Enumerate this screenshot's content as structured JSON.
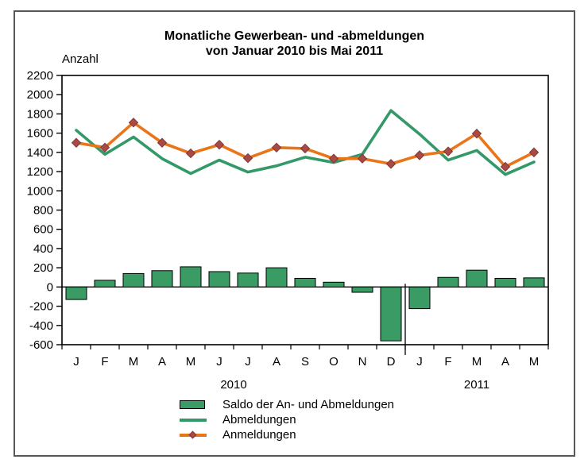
{
  "window": {
    "title_line1": "Monatliche Gewerbean- und -abmeldungen",
    "title_line2": "von Januar 2010 bis Mai 2011"
  },
  "y_axis_label": "Anzahl",
  "legend": [
    {
      "label": "Saldo der An- und Abmeldungen",
      "swatch": "bar"
    },
    {
      "label": "Abmeldungen",
      "swatch": "line"
    },
    {
      "label": "Anmeldungen",
      "swatch": "line-diamond"
    }
  ],
  "colors": {
    "bar_green": "#3A9B64",
    "line_green": "#339968",
    "orange": "#EA7418",
    "marker_fill": "#A94A45",
    "marker_stroke": "#823634",
    "axis_black": "#000000",
    "outer_border": "#58585A"
  },
  "chart_data": {
    "type": "composite",
    "title": "Monatliche Gewerbean- und -abmeldungen von Januar 2010 bis Mai 2011",
    "ylabel": "Anzahl",
    "ylim": [
      -600,
      2200
    ],
    "y_ticks": [
      2200,
      2000,
      1800,
      1600,
      1400,
      1200,
      1000,
      800,
      600,
      400,
      200,
      0,
      -200,
      -400,
      -600
    ],
    "grid": false,
    "legend_position": "bottom",
    "categories": [
      "J",
      "F",
      "M",
      "A",
      "M",
      "J",
      "J",
      "A",
      "S",
      "O",
      "N",
      "D",
      "J",
      "F",
      "M",
      "A",
      "M"
    ],
    "year_groups": [
      {
        "label": "2010",
        "months": 12
      },
      {
        "label": "2011",
        "months": 5
      }
    ],
    "series": [
      {
        "name": "Saldo der An- und Abmeldungen",
        "type": "bar",
        "values": [
          -130,
          70,
          140,
          170,
          210,
          160,
          145,
          200,
          90,
          50,
          -55,
          -560,
          -225,
          100,
          175,
          90,
          95
        ]
      },
      {
        "name": "Abmeldungen",
        "type": "line",
        "values": [
          1630,
          1380,
          1560,
          1335,
          1180,
          1320,
          1195,
          1260,
          1350,
          1295,
          1380,
          1835,
          1590,
          1320,
          1420,
          1170,
          1300
        ]
      },
      {
        "name": "Anmeldungen",
        "type": "line",
        "marker": "diamond",
        "values": [
          1500,
          1450,
          1710,
          1500,
          1390,
          1480,
          1340,
          1450,
          1440,
          1335,
          1335,
          1280,
          1370,
          1410,
          1595,
          1250,
          1400
        ]
      }
    ]
  }
}
